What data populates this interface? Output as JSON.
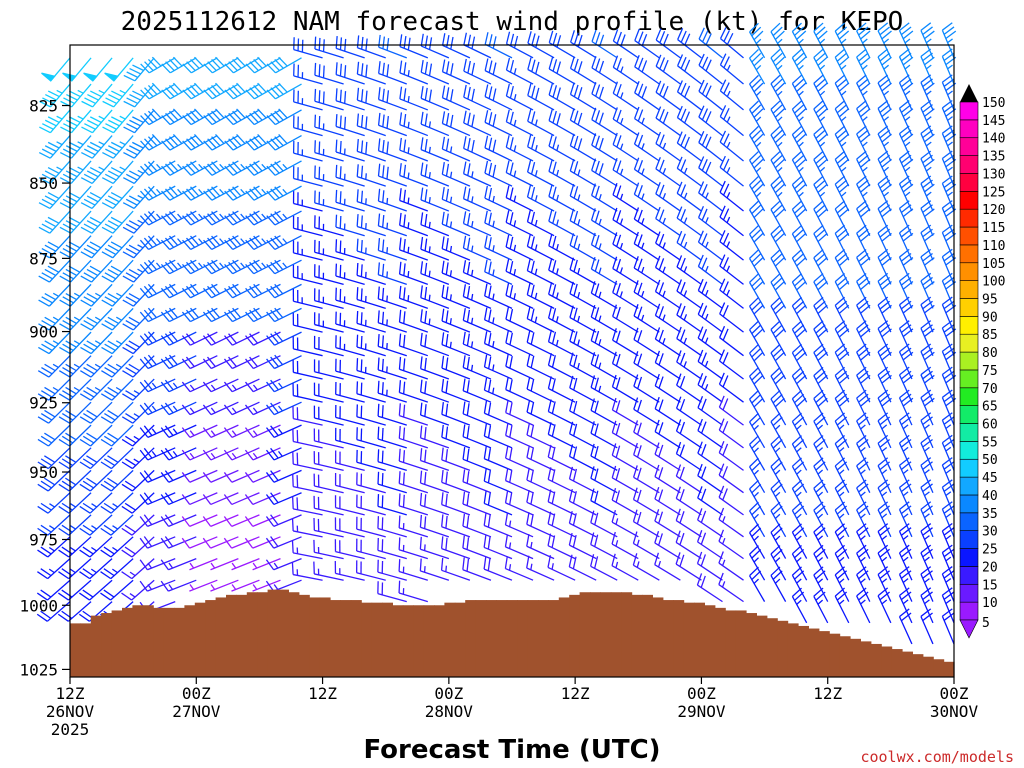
{
  "chart_data": {
    "type": "wind-profile",
    "title": "2025112612 NAM forecast wind profile (kt) for KEPO",
    "xlabel": "Forecast Time (UTC)",
    "ylabel": "",
    "credit": "coolwx.com/models",
    "y_axis": {
      "ticks": [
        825,
        850,
        875,
        900,
        925,
        950,
        975,
        1000,
        1025
      ],
      "range": [
        806,
        1028
      ],
      "units": "hPa"
    },
    "x_axis": {
      "range_hours": [
        0,
        84
      ],
      "ticks": [
        {
          "hour": 0,
          "line1": "12Z",
          "line2": "26NOV",
          "line3": "2025"
        },
        {
          "hour": 12,
          "line1": "00Z",
          "line2": "27NOV",
          "line3": ""
        },
        {
          "hour": 24,
          "line1": "12Z",
          "line2": "",
          "line3": ""
        },
        {
          "hour": 36,
          "line1": "00Z",
          "line2": "28NOV",
          "line3": ""
        },
        {
          "hour": 48,
          "line1": "12Z",
          "line2": "",
          "line3": ""
        },
        {
          "hour": 60,
          "line1": "00Z",
          "line2": "29NOV",
          "line3": ""
        },
        {
          "hour": 72,
          "line1": "12Z",
          "line2": "",
          "line3": ""
        },
        {
          "hour": 84,
          "line1": "00Z",
          "line2": "30NOV",
          "line3": ""
        }
      ]
    },
    "surface_pressure_hpa": [
      1007,
      1007,
      1004,
      1003,
      1002,
      1001,
      1000,
      1000,
      1001,
      1001,
      1001,
      1000,
      999,
      998,
      997,
      996,
      996,
      995,
      995,
      994,
      994,
      995,
      996,
      997,
      997,
      998,
      998,
      998,
      999,
      999,
      999,
      1000,
      1000,
      1000,
      1000,
      1000,
      999,
      999,
      998,
      998,
      998,
      998,
      998,
      998,
      998,
      998,
      998,
      997,
      996,
      995,
      995,
      995,
      995,
      995,
      996,
      996,
      997,
      998,
      998,
      999,
      999,
      1000,
      1001,
      1002,
      1002,
      1003,
      1004,
      1005,
      1006,
      1007,
      1008,
      1009,
      1010,
      1011,
      1012,
      1013,
      1014,
      1015,
      1016,
      1017,
      1018,
      1019,
      1020,
      1021,
      1022
    ],
    "colorbar": {
      "levels": [
        5,
        10,
        15,
        20,
        25,
        30,
        35,
        40,
        45,
        50,
        55,
        60,
        65,
        70,
        75,
        80,
        85,
        90,
        95,
        100,
        105,
        110,
        115,
        120,
        125,
        130,
        135,
        140,
        145,
        150
      ],
      "colors": [
        "#9a1aff",
        "#6a1aff",
        "#3a1aff",
        "#0a16ff",
        "#0a40ff",
        "#0a64ff",
        "#0a88ff",
        "#12a8ff",
        "#12ccff",
        "#12ecdc",
        "#12eca4",
        "#12ec68",
        "#22ec22",
        "#66ee22",
        "#aaf022",
        "#e8f022",
        "#fff000",
        "#ffd000",
        "#ffb000",
        "#ff9000",
        "#ff7000",
        "#ff5000",
        "#ff2a00",
        "#ff0000",
        "#ff0040",
        "#ff0070",
        "#ff0098",
        "#ff00c0",
        "#ff00e8",
        "#000000"
      ]
    }
  }
}
